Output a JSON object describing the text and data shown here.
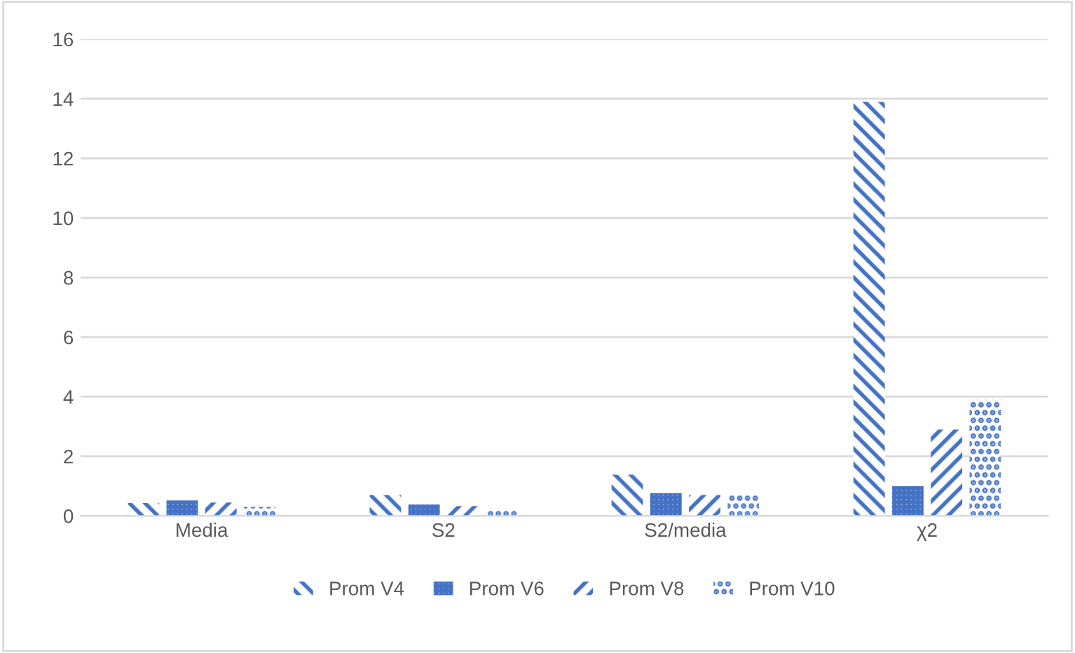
{
  "chart_data": {
    "type": "bar",
    "categories": [
      "Media",
      "S2",
      "S2/media",
      "χ2"
    ],
    "series": [
      {
        "name": "Prom V4",
        "color": "#4472c4",
        "values": [
          0.43,
          0.7,
          1.38,
          13.9
        ]
      },
      {
        "name": "Prom V6",
        "color": "#4472c4",
        "values": [
          0.52,
          0.38,
          0.76,
          1.0
        ]
      },
      {
        "name": "Prom V8",
        "color": "#4472c4",
        "values": [
          0.45,
          0.33,
          0.7,
          2.9
        ]
      },
      {
        "name": "Prom V10",
        "color": "#4472c4",
        "values": [
          0.3,
          0.2,
          0.7,
          3.9
        ]
      }
    ],
    "ylim": [
      0,
      16
    ],
    "yticks": [
      0,
      2,
      4,
      6,
      8,
      10,
      12,
      14,
      16
    ],
    "grid": "y",
    "legend": "bottom"
  }
}
